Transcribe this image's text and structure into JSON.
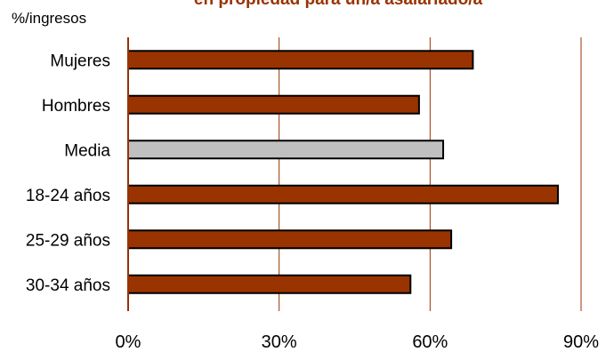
{
  "chart_data": {
    "type": "bar",
    "orientation": "horizontal",
    "title": "en propiedad para un/a asalariado/a",
    "unit_label": "%/ingresos",
    "categories": [
      "Mujeres",
      "Hombres",
      "Media",
      "18-24 años",
      "25-29 años",
      "30-34 años"
    ],
    "values": [
      68.5,
      57.8,
      62.6,
      85.4,
      64.2,
      56.1
    ],
    "highlight_category": "Media",
    "xlim": [
      0,
      90
    ],
    "xticks": [
      0,
      30,
      60,
      90
    ],
    "xtick_labels": [
      "0%",
      "30%",
      "60%",
      "90%"
    ],
    "grid": "vertical",
    "legend": "none",
    "colors": {
      "bar": "#993300",
      "highlight_bar": "#c0c0c0",
      "title": "#993300",
      "gridline": "#993300",
      "axis": "#993300",
      "bar_stroke": "#000000"
    }
  }
}
